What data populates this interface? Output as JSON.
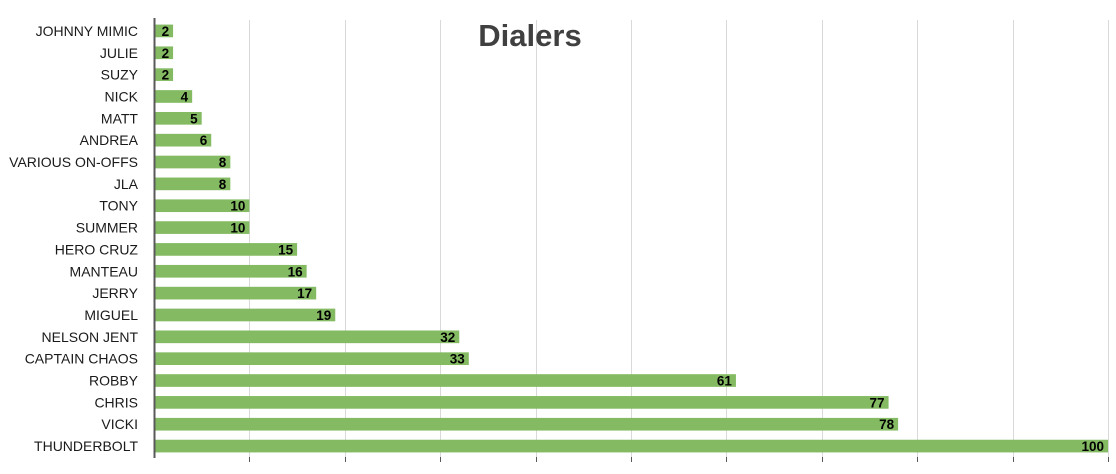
{
  "chart_data": {
    "type": "bar",
    "orientation": "horizontal",
    "title": "Dialers",
    "xlabel": "",
    "ylabel": "",
    "categories": [
      "JOHNNY MIMIC",
      "JULIE",
      "SUZY",
      "NICK",
      "MATT",
      "ANDREA",
      "VARIOUS ON-OFFS",
      "JLA",
      "TONY",
      "SUMMER",
      "HERO CRUZ",
      "MANTEAU",
      "JERRY",
      "MIGUEL",
      "NELSON JENT",
      "CAPTAIN CHAOS",
      "ROBBY",
      "CHRIS",
      "VICKI",
      "THUNDERBOLT"
    ],
    "values": [
      2,
      2,
      2,
      4,
      5,
      6,
      8,
      8,
      10,
      10,
      15,
      16,
      17,
      19,
      32,
      33,
      61,
      77,
      78,
      100
    ],
    "xlim": [
      0,
      100
    ],
    "grid": true,
    "legend": "none",
    "data_labels": true,
    "colors": {
      "bar": "#84BB62",
      "grid": "#d9d9d9",
      "axis": "#595959",
      "title": "#404040",
      "label": "#1a1a1a"
    }
  }
}
